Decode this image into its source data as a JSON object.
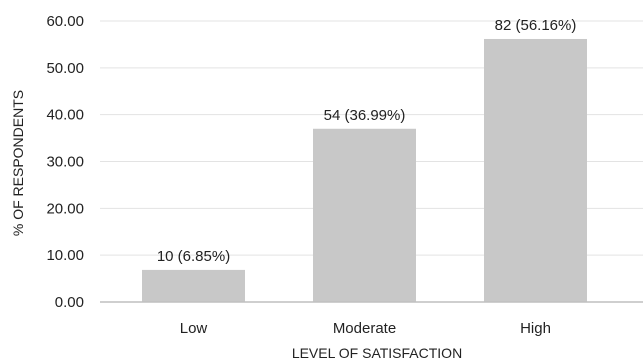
{
  "chart_data": {
    "type": "bar",
    "title": "",
    "xlabel": "LEVEL OF SATISFACTION",
    "ylabel": "% OF RESPONDENTS",
    "categories": [
      "Low",
      "Moderate",
      "High"
    ],
    "values": [
      6.85,
      36.99,
      56.16
    ],
    "data_labels": [
      "10 (6.85%)",
      "54 (36.99%)",
      "82 (56.16%)"
    ],
    "y_ticks": [
      "0.00",
      "10.00",
      "20.00",
      "30.00",
      "40.00",
      "50.00",
      "60.00"
    ],
    "ylim": [
      0,
      60
    ],
    "grid": true,
    "bar_color": "#c8c8c8",
    "grid_color": "#e3e3e3",
    "axis_color": "#bfbfbf"
  }
}
